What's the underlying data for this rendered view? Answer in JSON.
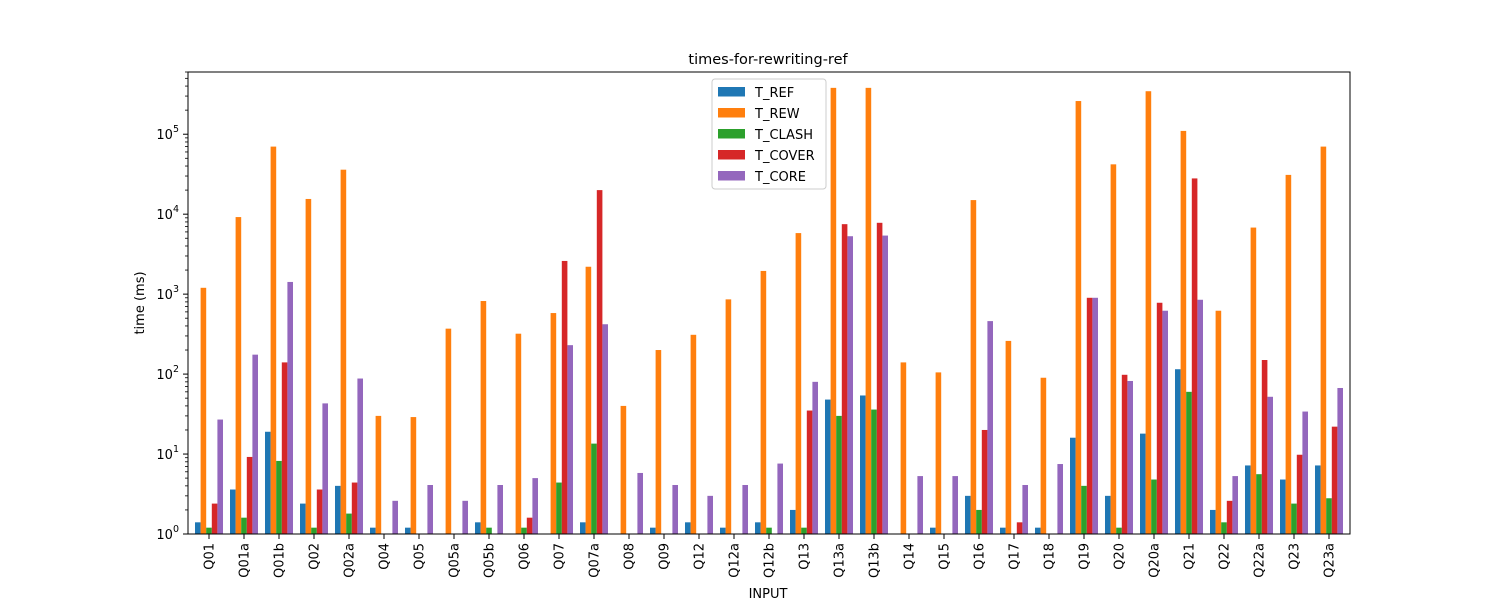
{
  "chart_data": {
    "type": "bar",
    "title": "times-for-rewriting-ref",
    "xlabel": "INPUT",
    "ylabel": "time (ms)",
    "yscale": "log",
    "ylim": [
      1,
      600000
    ],
    "grid": false,
    "legend_position": "top-center",
    "y_ticks": [
      {
        "value": 1,
        "base": "10",
        "exp": "0"
      },
      {
        "value": 10,
        "base": "10",
        "exp": "1"
      },
      {
        "value": 100,
        "base": "10",
        "exp": "2"
      },
      {
        "value": 1000,
        "base": "10",
        "exp": "3"
      },
      {
        "value": 10000,
        "base": "10",
        "exp": "4"
      },
      {
        "value": 100000,
        "base": "10",
        "exp": "5"
      }
    ],
    "categories": [
      "Q01",
      "Q01a",
      "Q01b",
      "Q02",
      "Q02a",
      "Q04",
      "Q05",
      "Q05a",
      "Q05b",
      "Q06",
      "Q07",
      "Q07a",
      "Q08",
      "Q09",
      "Q12",
      "Q12a",
      "Q12b",
      "Q13",
      "Q13a",
      "Q13b",
      "Q14",
      "Q15",
      "Q16",
      "Q17",
      "Q18",
      "Q19",
      "Q20",
      "Q20a",
      "Q21",
      "Q22",
      "Q22a",
      "Q23",
      "Q23a"
    ],
    "series": [
      {
        "name": "T_REF",
        "color": "#1f77b4",
        "values": [
          1.4,
          3.6,
          19,
          2.4,
          4.0,
          1.2,
          1.2,
          1,
          1.4,
          1,
          1,
          1.4,
          1,
          1.2,
          1.4,
          1.2,
          1.4,
          2.0,
          48,
          54,
          1,
          1.2,
          3.0,
          1.2,
          1.2,
          16,
          3.0,
          18,
          115,
          2.0,
          7.2,
          4.8,
          7.2
        ]
      },
      {
        "name": "T_REW",
        "color": "#ff7f0e",
        "values": [
          1200,
          9200,
          70000,
          15500,
          36000,
          30,
          29,
          370,
          820,
          320,
          580,
          2200,
          40,
          200,
          310,
          860,
          1950,
          5800,
          380000,
          380000,
          140,
          105,
          15000,
          260,
          90,
          260000,
          42000,
          345000,
          110000,
          620,
          6800,
          31000,
          70000
        ]
      },
      {
        "name": "T_CLASH",
        "color": "#2ca02c",
        "values": [
          1.2,
          1.6,
          8.2,
          1.2,
          1.8,
          1,
          1,
          1,
          1.2,
          1.2,
          4.4,
          13.5,
          1,
          1,
          1,
          1,
          1.2,
          1.2,
          30,
          36,
          1,
          1,
          2.0,
          1,
          1,
          4.0,
          1.2,
          4.8,
          60,
          1.4,
          5.6,
          2.4,
          2.8
        ]
      },
      {
        "name": "T_COVER",
        "color": "#d62728",
        "values": [
          2.4,
          9.2,
          140,
          3.6,
          4.4,
          1,
          1,
          1,
          1,
          1.6,
          2600,
          20000,
          1,
          1,
          1,
          1,
          1,
          35,
          7500,
          7800,
          1,
          1,
          20,
          1.4,
          1,
          900,
          98,
          780,
          28000,
          2.6,
          150,
          9.8,
          22
        ]
      },
      {
        "name": "T_CORE",
        "color": "#9467bd",
        "values": [
          27,
          175,
          1420,
          43,
          88,
          2.6,
          4.1,
          2.6,
          4.1,
          5.0,
          230,
          420,
          5.8,
          4.1,
          3.0,
          4.1,
          7.6,
          80,
          5300,
          5400,
          5.3,
          5.3,
          460,
          4.1,
          7.5,
          900,
          82,
          620,
          850,
          5.3,
          52,
          34,
          67
        ]
      }
    ]
  }
}
